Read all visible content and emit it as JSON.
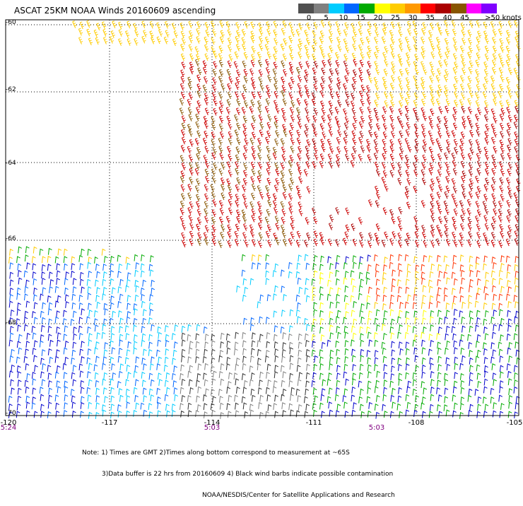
{
  "title": "ASCAT 25KM NOAA Winds 20160609 ascending",
  "legend": {
    "labels": [
      "0",
      "5",
      "10",
      "15",
      "20",
      "25",
      "30",
      "35",
      "40",
      "45",
      ">50 knots"
    ],
    "colors": [
      "#505050",
      "#808080",
      "#00ccff",
      "#0066ff",
      "#00aa00",
      "#ffff00",
      "#ffcc00",
      "#ff9900",
      "#ff0000",
      "#aa0000",
      "#885500",
      "#ff00ff",
      "#8000ff"
    ]
  },
  "lat_labels": [
    "-60",
    "-62",
    "-64",
    "-66",
    "-68",
    "-70"
  ],
  "lon_labels": [
    "-120",
    "-117",
    "-114",
    "-111",
    "-108",
    "-105"
  ],
  "time_labels": [
    "5:24",
    "5:03",
    "5:03"
  ],
  "notes": [
    "Note: 1) Times are GMT 2)Times along bottom correspond to measurement at ~65S",
    "3)Data buffer is 22 hrs from 20160609 4) Black wind barbs indicate possible contamination",
    "NOAA/NESDIS/Center for Satellite Applications and Research"
  ],
  "colors": {
    "grid": "#000000",
    "background": "#ffffff"
  }
}
